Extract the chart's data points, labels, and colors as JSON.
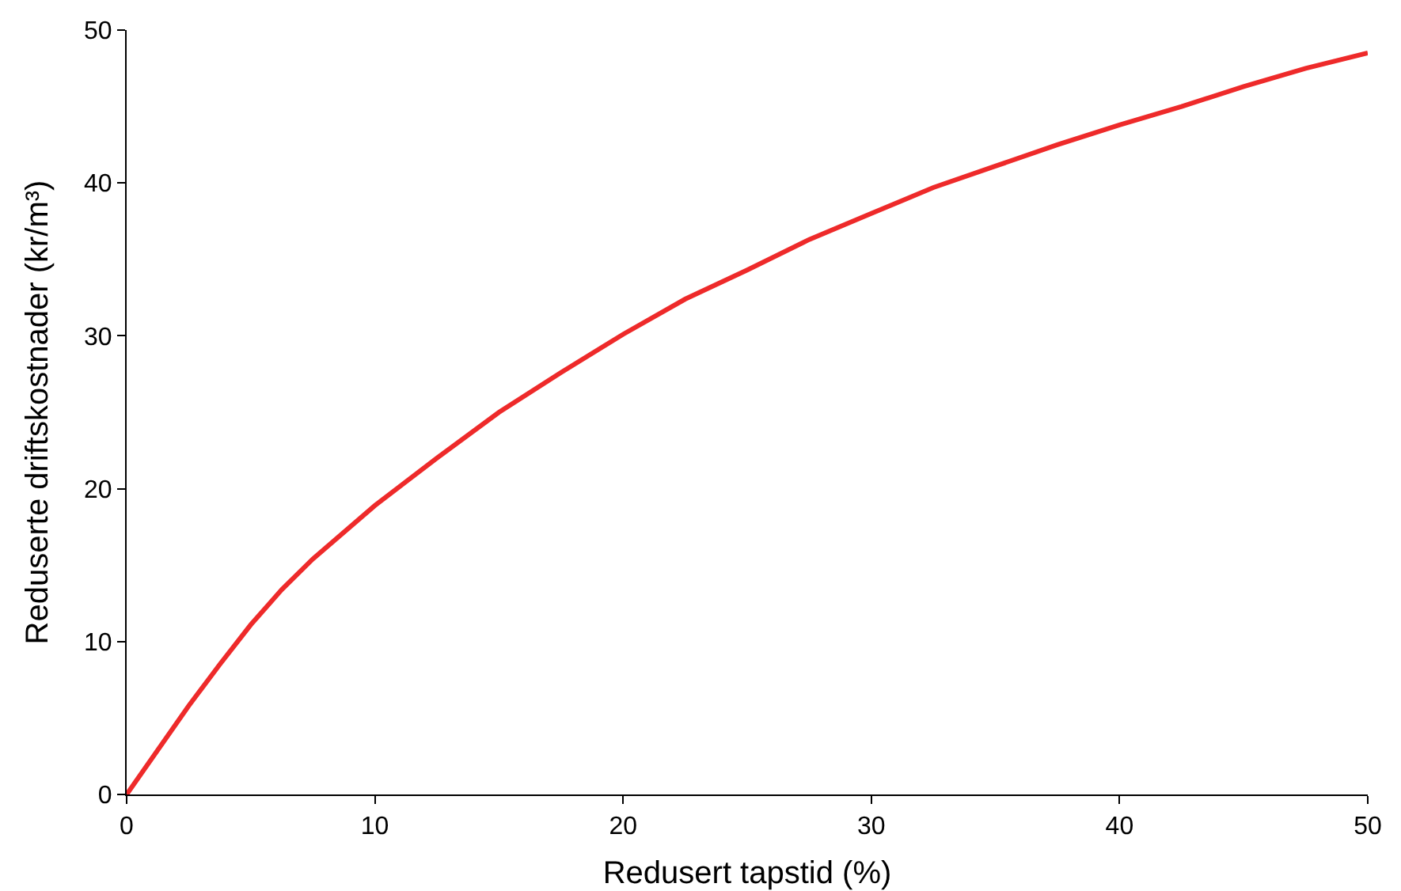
{
  "chart_data": {
    "type": "line",
    "xlabel": "Redusert tapstid (%)",
    "ylabel": "Reduserte driftskostnader (kr/m³)",
    "x": [
      0,
      1.25,
      2.5,
      3.75,
      5,
      6.25,
      7.5,
      10,
      12.5,
      15,
      17.5,
      20,
      22.5,
      25,
      27.5,
      30,
      32.5,
      35,
      37.5,
      40,
      42.5,
      45,
      47.5,
      50
    ],
    "series": [
      {
        "color": "#ee2a2a",
        "values": [
          0,
          2.9,
          5.8,
          8.5,
          11.1,
          13.4,
          15.4,
          18.9,
          22.0,
          25.0,
          27.6,
          30.1,
          32.4,
          34.3,
          36.3,
          38.0,
          39.7,
          41.1,
          42.5,
          43.8,
          45.0,
          46.3,
          47.5,
          48.5
        ]
      }
    ],
    "xlim": [
      0,
      50
    ],
    "xticks": [
      0,
      10,
      20,
      30,
      40,
      50
    ],
    "ylim": [
      0,
      50
    ],
    "yticks": [
      0,
      10,
      20,
      30,
      40,
      50
    ],
    "grid": false,
    "legend": false,
    "marker": "none",
    "line_style": "solid"
  }
}
